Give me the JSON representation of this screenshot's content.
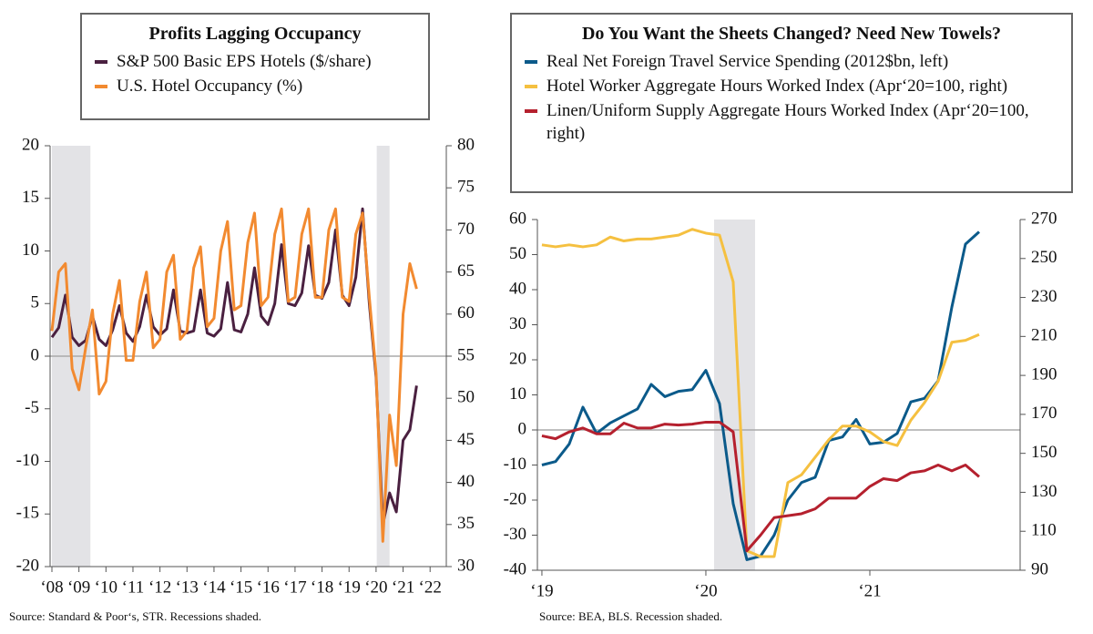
{
  "chart_data": [
    {
      "type": "line",
      "title": "Profits Lagging Occupancy",
      "x": [
        0,
        1,
        2,
        3,
        4,
        5,
        6,
        7,
        8,
        9,
        10,
        11,
        12,
        13,
        14,
        15,
        16,
        17,
        18,
        19,
        20,
        21,
        22,
        23,
        24,
        25,
        26,
        27,
        28,
        29,
        30,
        31,
        32,
        33,
        34,
        35,
        36,
        37,
        38,
        39,
        40,
        41,
        42,
        43,
        44,
        45,
        46,
        47,
        48,
        49,
        50,
        51,
        52,
        53,
        54
      ],
      "series": [
        {
          "name": "S&P 500 Basic EPS Hotels ($/share)",
          "color": "#4a2040",
          "axis": "y",
          "values": [
            1.8,
            2.7,
            5.8,
            1.8,
            1.0,
            1.5,
            3.8,
            1.6,
            1.0,
            2.5,
            4.8,
            2.2,
            1.4,
            2.8,
            5.8,
            2.8,
            2.0,
            2.6,
            6.3,
            2.4,
            2.2,
            2.4,
            6.3,
            2.2,
            1.9,
            2.6,
            7.0,
            2.5,
            2.3,
            4.0,
            8.4,
            3.8,
            3.0,
            5.0,
            10.6,
            5.0,
            4.8,
            6.0,
            10.5,
            5.8,
            5.5,
            7.0,
            12.0,
            5.8,
            4.8,
            7.5,
            14.0,
            5.0,
            -2.0,
            -16.0,
            -13.0,
            -14.8,
            -8.0,
            -7.0,
            -2.8
          ]
        },
        {
          "name": "U.S. Hotel Occupancy (%)",
          "color": "#f28a30",
          "axis": "y2",
          "values": [
            58,
            65,
            66,
            53.5,
            51,
            56,
            60.5,
            50.5,
            52,
            60,
            64,
            54.5,
            54.5,
            61.5,
            65,
            56,
            57,
            65,
            67,
            57,
            58,
            65.5,
            68,
            58.5,
            59.5,
            67.5,
            71,
            60.5,
            61,
            68.5,
            72,
            61,
            62,
            69.5,
            72.5,
            61.5,
            62,
            69.5,
            72.5,
            62,
            62,
            70,
            72.5,
            62,
            61.5,
            69.5,
            72,
            62,
            53,
            33,
            48,
            42,
            60,
            66,
            63
          ]
        }
      ],
      "xlim": [
        -0.27,
        58.4
      ],
      "xticks": [
        {
          "value": 0,
          "label": "‘08"
        },
        {
          "value": 4,
          "label": "‘09"
        },
        {
          "value": 8,
          "label": "‘10"
        },
        {
          "value": 12,
          "label": "‘11"
        },
        {
          "value": 16,
          "label": "‘12"
        },
        {
          "value": 20,
          "label": "‘13"
        },
        {
          "value": 24,
          "label": "‘14"
        },
        {
          "value": 28,
          "label": "‘15"
        },
        {
          "value": 32,
          "label": "‘16"
        },
        {
          "value": 36,
          "label": "‘17"
        },
        {
          "value": 40,
          "label": "‘18"
        },
        {
          "value": 44,
          "label": "‘19"
        },
        {
          "value": 48,
          "label": "‘20"
        },
        {
          "value": 52,
          "label": "‘21"
        },
        {
          "value": 56,
          "label": "‘22"
        }
      ],
      "ylim": [
        -20,
        20
      ],
      "yticks": [
        -20,
        -15,
        -10,
        -5,
        0,
        5,
        10,
        15,
        20
      ],
      "y2lim": [
        30,
        80
      ],
      "y2ticks": [
        30,
        35,
        40,
        45,
        50,
        55,
        60,
        65,
        70,
        75,
        80
      ],
      "shaded": [
        [
          0,
          5.7
        ],
        [
          48.1,
          50
        ]
      ],
      "zero_line": true,
      "source": "Source: Standard & Poor‘s, STR. Recessions shaded."
    },
    {
      "type": "line",
      "title": "Do You Want the Sheets Changed? Need New Towels?",
      "x": [
        0,
        1,
        2,
        3,
        4,
        5,
        6,
        7,
        8,
        9,
        10,
        11,
        12,
        13,
        14,
        15,
        16,
        17,
        18,
        19,
        20,
        21,
        22,
        23,
        24,
        25,
        26,
        27,
        28,
        29,
        30,
        31,
        32
      ],
      "series": [
        {
          "name": "Real Net Foreign Travel Service Spending (2012$bn, left)",
          "color": "#0b5a8a",
          "axis": "y",
          "values": [
            -10,
            -9,
            -4,
            6.5,
            -1,
            2,
            4,
            6,
            13,
            9.5,
            11,
            11.5,
            17,
            7.5,
            -21,
            -37,
            -36,
            -30,
            -20,
            -15,
            -13.5,
            -3,
            -2,
            3,
            -4,
            -3.5,
            -1,
            8,
            9,
            14,
            35,
            53,
            56.5
          ]
        },
        {
          "name": "Hotel Worker Aggregate Hours Worked Index (Apr‘20=100, right)",
          "color": "#f5c040",
          "axis": "y2",
          "values": [
            257,
            256,
            257,
            256,
            257,
            261,
            259,
            260,
            260,
            261,
            262,
            265,
            263,
            262,
            238,
            100,
            97,
            97,
            135,
            139,
            148,
            157,
            164,
            164,
            161,
            156,
            154,
            167,
            176,
            187,
            207,
            208,
            211
          ]
        },
        {
          "name": "Linen/Uniform Supply Aggregate Hours Worked Index (Apr‘20=100, right)",
          "color": "#b5202e",
          "axis": "y2",
          "values": [
            159,
            157.5,
            161,
            163,
            160,
            160,
            165.5,
            163,
            163,
            165,
            164.5,
            165,
            166,
            166,
            161,
            100,
            108,
            117,
            118,
            119,
            121.5,
            127,
            127,
            127,
            133,
            137,
            136,
            140,
            141,
            144,
            141,
            144,
            138
          ]
        }
      ],
      "xlim": [
        -0.33,
        35
      ],
      "xticks": [
        {
          "value": 0,
          "label": "‘19"
        },
        {
          "value": 12,
          "label": "‘20"
        },
        {
          "value": 24,
          "label": "‘21"
        }
      ],
      "ylim": [
        -40,
        60
      ],
      "yticks": [
        -40,
        -30,
        -20,
        -10,
        0,
        10,
        20,
        30,
        40,
        50,
        60
      ],
      "y2lim": [
        90,
        270
      ],
      "y2ticks": [
        90,
        110,
        130,
        150,
        170,
        190,
        210,
        230,
        250,
        270
      ],
      "shaded": [
        [
          12.6,
          15.6
        ]
      ],
      "zero_line": true,
      "source": "Source: BEA, BLS. Recession shaded."
    }
  ]
}
